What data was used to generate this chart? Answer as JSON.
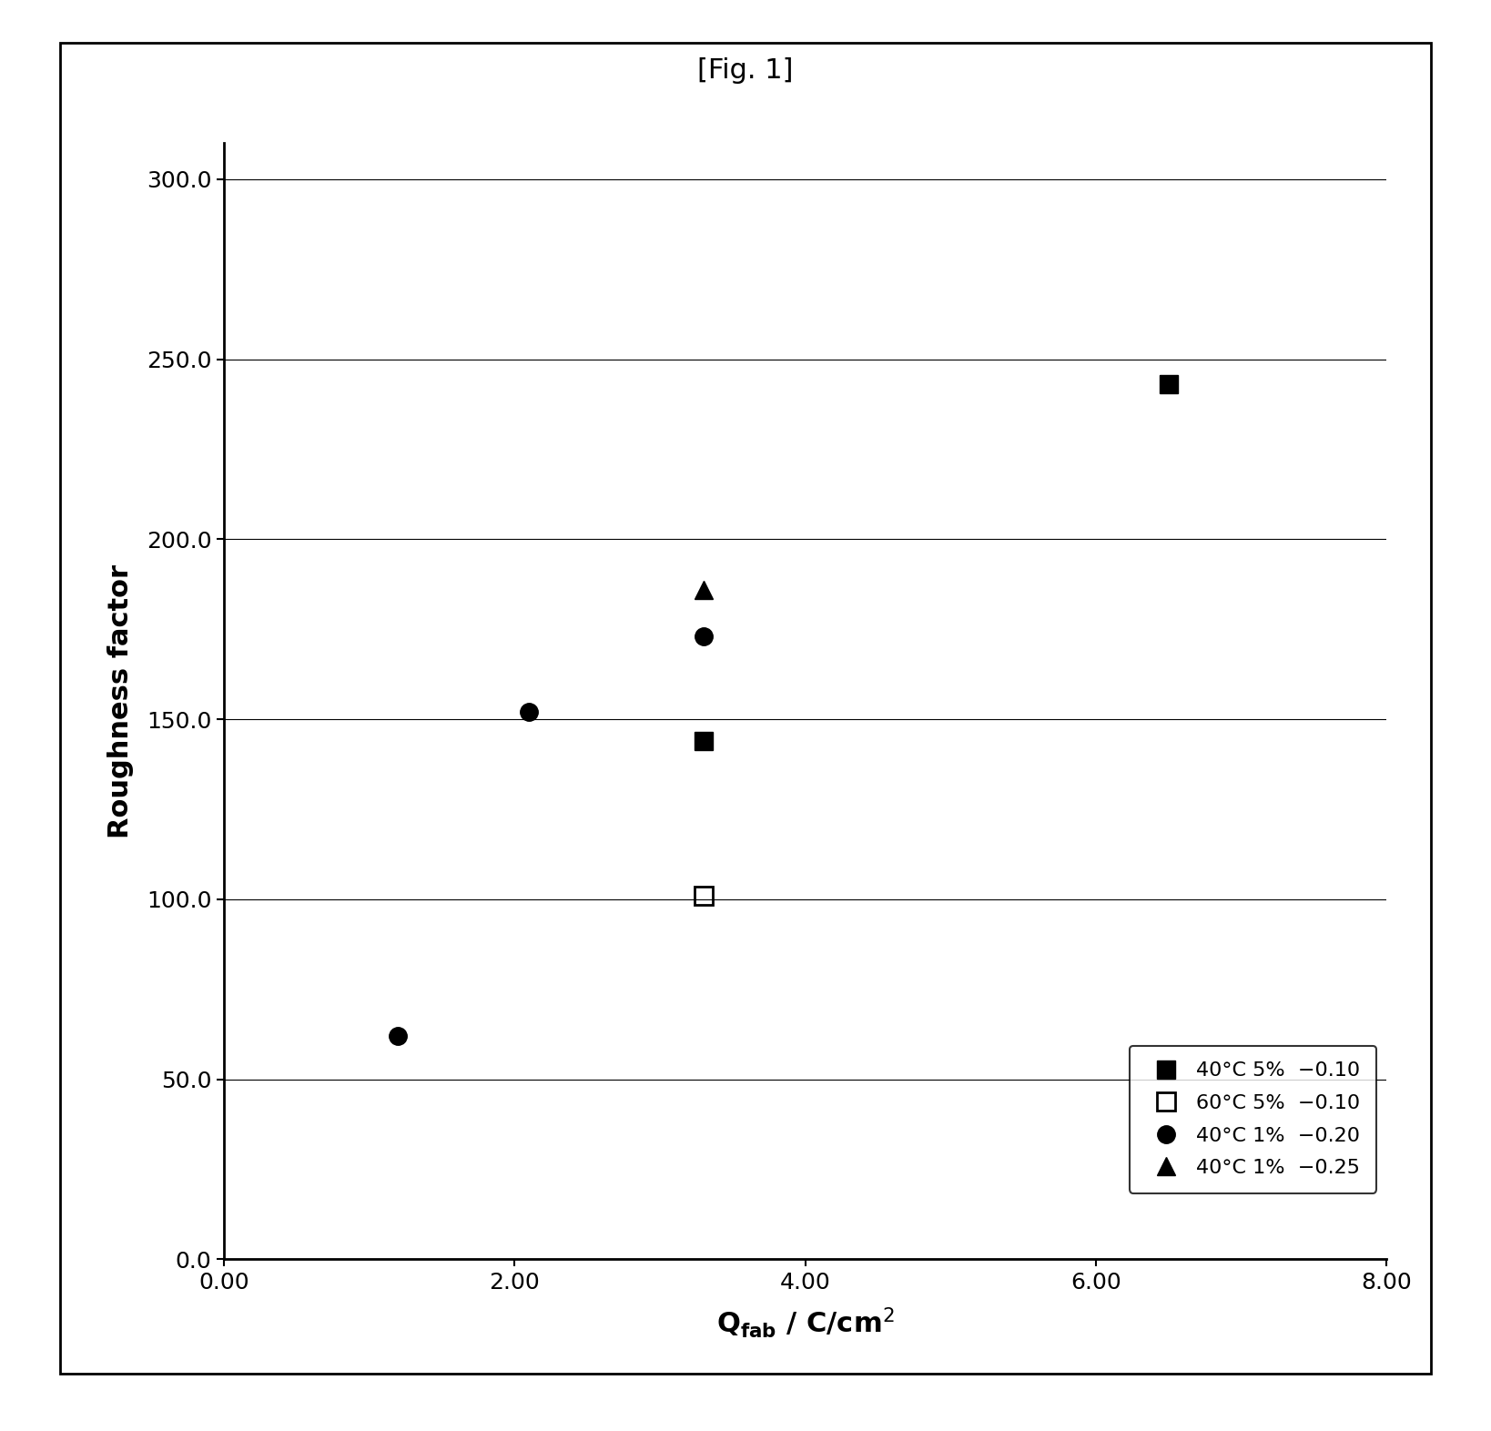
{
  "title": "[Fig. 1]",
  "ylabel": "Roughness factor",
  "xlabel": "Q",
  "xlabel_sub": "fab",
  "xlabel_rest": " / C/cm",
  "xlabel_sup": "2",
  "xlim": [
    0.0,
    8.0
  ],
  "ylim": [
    0.0,
    310.0
  ],
  "xticks": [
    0.0,
    2.0,
    4.0,
    6.0,
    8.0
  ],
  "yticks": [
    0.0,
    50.0,
    100.0,
    150.0,
    200.0,
    250.0,
    300.0
  ],
  "xtick_labels": [
    "0.00",
    "2.00",
    "4.00",
    "6.00",
    "8.00"
  ],
  "ytick_labels": [
    "0.0",
    "50.0",
    "100.0",
    "150.0",
    "200.0",
    "250.0",
    "300.0"
  ],
  "series": [
    {
      "label": "40°C 5%  −0.10",
      "marker": "s",
      "filled": true,
      "color": "black",
      "x": [
        3.3,
        6.5
      ],
      "y": [
        144,
        243
      ]
    },
    {
      "label": "60°C 5%  −0.10",
      "marker": "s",
      "filled": false,
      "color": "black",
      "x": [
        3.3
      ],
      "y": [
        101
      ]
    },
    {
      "label": "40°C 1%  −0.20",
      "marker": "o",
      "filled": true,
      "color": "black",
      "x": [
        1.2,
        2.1,
        3.3
      ],
      "y": [
        62,
        152,
        173
      ]
    },
    {
      "label": "40°C 1%  −0.25",
      "marker": "^",
      "filled": true,
      "color": "black",
      "x": [
        3.3
      ],
      "y": [
        186
      ]
    }
  ],
  "background_color": "#ffffff",
  "marker_size": 14,
  "title_fontsize": 22,
  "axis_label_fontsize": 22,
  "tick_fontsize": 18,
  "legend_fontsize": 16
}
